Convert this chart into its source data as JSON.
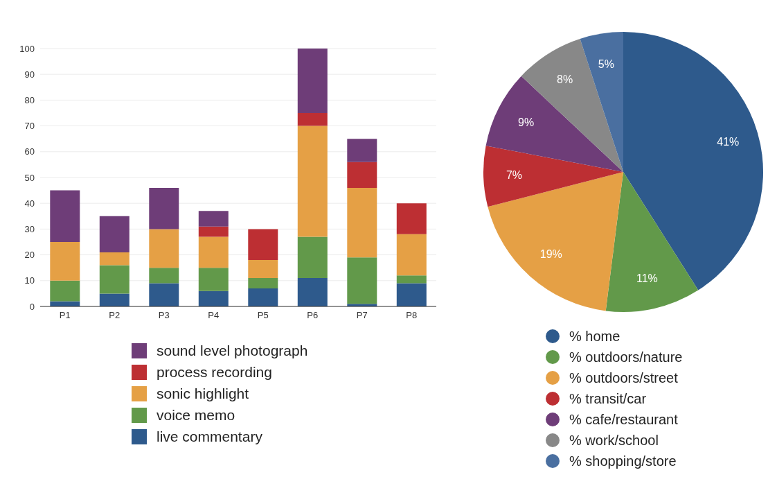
{
  "chart_data": [
    {
      "type": "bar",
      "stacked": true,
      "categories": [
        "P1",
        "P2",
        "P3",
        "P4",
        "P5",
        "P6",
        "P7",
        "P8"
      ],
      "series": [
        {
          "name": "live commentary",
          "color": "#2e5a8c",
          "values": [
            2,
            5,
            9,
            6,
            7,
            11,
            1,
            9
          ]
        },
        {
          "name": "voice memo",
          "color": "#62994a",
          "values": [
            8,
            11,
            6,
            9,
            4,
            16,
            18,
            3
          ]
        },
        {
          "name": "sonic highlight",
          "color": "#e5a045",
          "values": [
            15,
            5,
            15,
            12,
            7,
            43,
            27,
            16
          ]
        },
        {
          "name": "process recording",
          "color": "#bd2f33",
          "values": [
            0,
            0,
            0,
            4,
            12,
            5,
            10,
            12
          ]
        },
        {
          "name": "sound level photograph",
          "color": "#6e3d78",
          "values": [
            20,
            14,
            16,
            6,
            0,
            25,
            9,
            0
          ]
        }
      ],
      "ylim": [
        0,
        100
      ],
      "yticks": [
        0,
        10,
        20,
        30,
        40,
        50,
        60,
        70,
        80,
        90,
        100
      ],
      "grid": "y",
      "legend": "bottom"
    },
    {
      "type": "pie",
      "categories": [
        "% home",
        "% outdoors/nature",
        "% outdoors/street",
        "% transit/car",
        "% cafe/restaurant",
        "% work/school",
        "% shopping/store"
      ],
      "values": [
        41,
        11,
        19,
        7,
        9,
        8,
        5
      ],
      "colors": [
        "#2e5a8c",
        "#62994a",
        "#e5a045",
        "#bd2f33",
        "#6e3d78",
        "#888888",
        "#4a6fa0"
      ],
      "value_labels": [
        "41%",
        "11%",
        "19%",
        "7%",
        "9%",
        "8%",
        "5%"
      ],
      "legend": "bottom"
    }
  ]
}
